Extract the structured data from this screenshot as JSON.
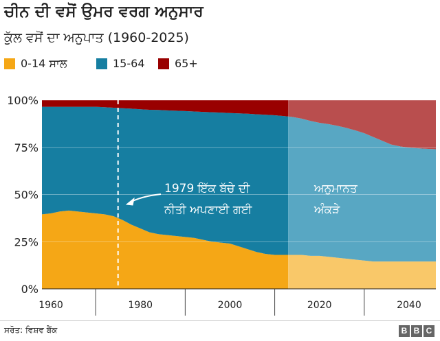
{
  "header": {
    "title": "ਚੀਨ ਦੀ ਵਸੋਂ ਉਮਰ ਵਰਗ ਅਨੁਸਾਰ",
    "subtitle": "ਕੁੱਲ ਵਸੋਂ ਦਾ ਅਨੁਪਾਤ (1960-2025)"
  },
  "legend": [
    {
      "label": "0-14 ਸਾਲ",
      "color": "#f5a716"
    },
    {
      "label": "15-64",
      "color": "#167ea1"
    },
    {
      "label": "65+",
      "color": "#990000"
    }
  ],
  "footer": {
    "source": "ਸਰੋਤ: ਵਿਸ਼ਵ ਬੈਂਕ",
    "logo_letters": [
      "B",
      "B",
      "C"
    ]
  },
  "chart_data": {
    "type": "area",
    "stacked": true,
    "x_unit": "year",
    "xlim": [
      1958,
      2046
    ],
    "ylim": [
      0,
      100
    ],
    "y_ticks": [
      0,
      25,
      50,
      75,
      100
    ],
    "y_tick_labels": [
      "0%",
      "25%",
      "50%",
      "75%",
      "100%"
    ],
    "x_ticks": [
      1960,
      1980,
      2000,
      2020,
      2040
    ],
    "x_tick_labels": [
      "1960",
      "1980",
      "2000",
      "2020",
      "2040"
    ],
    "grid": "horizontal",
    "x": [
      1958,
      1960,
      1962,
      1964,
      1966,
      1968,
      1970,
      1972,
      1974,
      1976,
      1978,
      1980,
      1982,
      1984,
      1986,
      1988,
      1990,
      1992,
      1994,
      1996,
      1998,
      2000,
      2002,
      2004,
      2006,
      2008,
      2010,
      2012,
      2014,
      2016,
      2018,
      2020,
      2022,
      2024,
      2026,
      2028,
      2030,
      2032,
      2034,
      2036,
      2038,
      2040,
      2042,
      2044,
      2046
    ],
    "series": [
      {
        "name": "0-14 ਸਾਲ",
        "color": "#f5a716",
        "projection_color": "#f9c869",
        "values": [
          39.5,
          40,
          41,
          41.5,
          41,
          40.5,
          40,
          39.5,
          38.5,
          36.5,
          34,
          32,
          30,
          29,
          28.5,
          28,
          27.5,
          27,
          26,
          25,
          24.5,
          24,
          22.5,
          21,
          19.5,
          18.5,
          18,
          18,
          18,
          18,
          17.5,
          17.5,
          17,
          16.5,
          16,
          15.5,
          15,
          14.5,
          14.5,
          14.5,
          14.5,
          14.5,
          14.5,
          14.5,
          14.5
        ]
      },
      {
        "name": "15-64",
        "color": "#167ea1",
        "projection_color": "#58a7c3",
        "values": [
          57,
          56.5,
          55.5,
          55,
          55.5,
          56,
          56.5,
          56.8,
          57.5,
          59.2,
          61.5,
          63.2,
          64.9,
          65.8,
          66.1,
          66.4,
          66.7,
          67,
          67.8,
          68.6,
          68.9,
          69.2,
          70.5,
          71.8,
          73,
          73.8,
          74,
          73.6,
          73.1,
          72.2,
          71.5,
          70.5,
          70.3,
          69.9,
          69.3,
          68.5,
          67.5,
          66,
          64,
          62,
          61,
          60.3,
          60,
          59.7,
          59.5
        ]
      },
      {
        "name": "65+",
        "color": "#990000",
        "projection_color": "#b94e4e",
        "values": [
          3.5,
          3.5,
          3.5,
          3.5,
          3.5,
          3.5,
          3.5,
          3.7,
          4,
          4.3,
          4.5,
          4.8,
          5.1,
          5.2,
          5.4,
          5.6,
          5.8,
          6,
          6.2,
          6.4,
          6.6,
          6.8,
          7,
          7.2,
          7.5,
          7.7,
          8,
          8.4,
          8.9,
          9.8,
          11,
          12,
          12.7,
          13.6,
          14.7,
          16,
          17.5,
          19.5,
          21.5,
          23.5,
          24.5,
          25.2,
          25.5,
          25.8,
          26
        ]
      }
    ],
    "projection_start": 2013,
    "projection_label_lines": [
      "ਅਨੁਮਾਨਤ",
      "ਅੰਕੜੇ"
    ],
    "annotation": {
      "x": 1975,
      "label_lines": [
        "1979 ਇੱਕ ਬੱਚੇ ਦੀ",
        "ਨੀਤੀ ਅਪਣਾਈ ਗਈ"
      ]
    }
  }
}
